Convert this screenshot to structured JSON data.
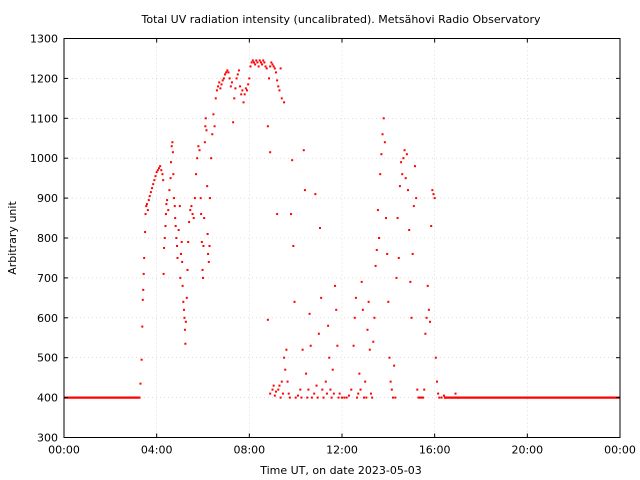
{
  "chart_data": {
    "type": "scatter",
    "title": "Total UV radiation intensity (uncalibrated). Metsähovi Radio Observatory",
    "xlabel": "Time UT, on date 2023-05-03",
    "ylabel": "Arbitrary unit",
    "xlim": [
      0,
      24
    ],
    "ylim": [
      300,
      1300
    ],
    "x_ticks": [
      {
        "value": 0,
        "label": "00:00"
      },
      {
        "value": 4,
        "label": "04:00"
      },
      {
        "value": 8,
        "label": "08:00"
      },
      {
        "value": 12,
        "label": "12:00"
      },
      {
        "value": 16,
        "label": "16:00"
      },
      {
        "value": 20,
        "label": "20:00"
      },
      {
        "value": 24,
        "label": "00:00"
      }
    ],
    "y_ticks": [
      300,
      400,
      500,
      600,
      700,
      800,
      900,
      1000,
      1100,
      1200,
      1300
    ],
    "grid": true,
    "marker_color": "#ff0000",
    "series": [
      {
        "x_unit": "hours UT",
        "baseline_night": [
          {
            "x_start": 0.0,
            "x_end": 3.3,
            "y": 400
          },
          {
            "x_start": 16.4,
            "x_end": 24.0,
            "y": 400
          }
        ],
        "points": [
          [
            3.3,
            435
          ],
          [
            3.35,
            495
          ],
          [
            3.38,
            578
          ],
          [
            3.4,
            645
          ],
          [
            3.42,
            670
          ],
          [
            3.44,
            710
          ],
          [
            3.46,
            750
          ],
          [
            3.5,
            815
          ],
          [
            3.52,
            860
          ],
          [
            3.55,
            880
          ],
          [
            3.58,
            885
          ],
          [
            3.62,
            870
          ],
          [
            3.66,
            895
          ],
          [
            3.7,
            905
          ],
          [
            3.75,
            915
          ],
          [
            3.8,
            925
          ],
          [
            3.85,
            935
          ],
          [
            3.9,
            945
          ],
          [
            3.95,
            955
          ],
          [
            4.0,
            965
          ],
          [
            4.05,
            970
          ],
          [
            4.1,
            975
          ],
          [
            4.15,
            980
          ],
          [
            4.2,
            970
          ],
          [
            4.25,
            960
          ],
          [
            4.28,
            945
          ],
          [
            4.3,
            710
          ],
          [
            4.32,
            775
          ],
          [
            4.35,
            800
          ],
          [
            4.38,
            830
          ],
          [
            4.4,
            860
          ],
          [
            4.42,
            885
          ],
          [
            4.45,
            895
          ],
          [
            4.5,
            870
          ],
          [
            4.55,
            920
          ],
          [
            4.6,
            950
          ],
          [
            4.62,
            990
          ],
          [
            4.65,
            1030
          ],
          [
            4.68,
            1040
          ],
          [
            4.7,
            1015
          ],
          [
            4.72,
            960
          ],
          [
            4.75,
            900
          ],
          [
            4.78,
            880
          ],
          [
            4.8,
            850
          ],
          [
            4.82,
            830
          ],
          [
            4.85,
            800
          ],
          [
            4.88,
            780
          ],
          [
            4.9,
            750
          ],
          [
            4.95,
            820
          ],
          [
            5.0,
            880
          ],
          [
            5.02,
            700
          ],
          [
            5.05,
            760
          ],
          [
            5.08,
            790
          ],
          [
            5.1,
            740
          ],
          [
            5.12,
            680
          ],
          [
            5.15,
            640
          ],
          [
            5.18,
            620
          ],
          [
            5.2,
            600
          ],
          [
            5.22,
            570
          ],
          [
            5.24,
            535
          ],
          [
            5.26,
            590
          ],
          [
            5.3,
            650
          ],
          [
            5.33,
            720
          ],
          [
            5.36,
            790
          ],
          [
            5.4,
            840
          ],
          [
            5.45,
            870
          ],
          [
            5.5,
            880
          ],
          [
            5.55,
            860
          ],
          [
            5.6,
            850
          ],
          [
            5.65,
            900
          ],
          [
            5.7,
            960
          ],
          [
            5.75,
            1000
          ],
          [
            5.8,
            1030
          ],
          [
            5.85,
            1020
          ],
          [
            5.9,
            900
          ],
          [
            5.92,
            860
          ],
          [
            5.95,
            790
          ],
          [
            5.98,
            720
          ],
          [
            6.0,
            700
          ],
          [
            6.02,
            780
          ],
          [
            6.05,
            850
          ],
          [
            6.08,
            1040
          ],
          [
            6.1,
            1080
          ],
          [
            6.12,
            1100
          ],
          [
            6.15,
            1070
          ],
          [
            6.18,
            930
          ],
          [
            6.2,
            810
          ],
          [
            6.22,
            760
          ],
          [
            6.25,
            740
          ],
          [
            6.28,
            780
          ],
          [
            6.3,
            900
          ],
          [
            6.35,
            1000
          ],
          [
            6.4,
            1060
          ],
          [
            6.45,
            1110
          ],
          [
            6.5,
            1080
          ],
          [
            6.55,
            1150
          ],
          [
            6.6,
            1170
          ],
          [
            6.65,
            1180
          ],
          [
            6.7,
            1190
          ],
          [
            6.75,
            1175
          ],
          [
            6.8,
            1185
          ],
          [
            6.85,
            1195
          ],
          [
            6.9,
            1200
          ],
          [
            6.95,
            1210
          ],
          [
            7.0,
            1215
          ],
          [
            7.05,
            1220
          ],
          [
            7.1,
            1215
          ],
          [
            7.15,
            1200
          ],
          [
            7.2,
            1180
          ],
          [
            7.25,
            1190
          ],
          [
            7.3,
            1090
          ],
          [
            7.35,
            1150
          ],
          [
            7.4,
            1175
          ],
          [
            7.45,
            1200
          ],
          [
            7.5,
            1210
          ],
          [
            7.55,
            1220
          ],
          [
            7.6,
            1180
          ],
          [
            7.65,
            1160
          ],
          [
            7.7,
            1170
          ],
          [
            7.75,
            1140
          ],
          [
            7.8,
            1160
          ],
          [
            7.85,
            1175
          ],
          [
            7.9,
            1170
          ],
          [
            7.95,
            1185
          ],
          [
            8.0,
            1200
          ],
          [
            8.05,
            1230
          ],
          [
            8.1,
            1240
          ],
          [
            8.15,
            1245
          ],
          [
            8.2,
            1240
          ],
          [
            8.25,
            1235
          ],
          [
            8.3,
            1245
          ],
          [
            8.35,
            1240
          ],
          [
            8.4,
            1230
          ],
          [
            8.45,
            1245
          ],
          [
            8.5,
            1240
          ],
          [
            8.55,
            1235
          ],
          [
            8.6,
            1245
          ],
          [
            8.65,
            1240
          ],
          [
            8.7,
            1230
          ],
          [
            8.75,
            1225
          ],
          [
            8.8,
            1080
          ],
          [
            8.85,
            1200
          ],
          [
            8.9,
            1230
          ],
          [
            8.95,
            1240
          ],
          [
            9.0,
            1235
          ],
          [
            9.05,
            1230
          ],
          [
            9.1,
            1225
          ],
          [
            9.15,
            1215
          ],
          [
            9.2,
            1195
          ],
          [
            9.25,
            1180
          ],
          [
            9.3,
            1170
          ],
          [
            9.35,
            1225
          ],
          [
            9.4,
            1150
          ],
          [
            9.5,
            1140
          ],
          [
            8.9,
            1015
          ],
          [
            8.8,
            595
          ],
          [
            8.9,
            410
          ],
          [
            9.0,
            420
          ],
          [
            9.05,
            430
          ],
          [
            9.1,
            405
          ],
          [
            9.15,
            415
          ],
          [
            9.2,
            860
          ],
          [
            9.25,
            420
          ],
          [
            9.3,
            430
          ],
          [
            9.35,
            400
          ],
          [
            9.4,
            440
          ],
          [
            9.45,
            410
          ],
          [
            9.5,
            500
          ],
          [
            9.55,
            470
          ],
          [
            9.6,
            520
          ],
          [
            9.65,
            440
          ],
          [
            9.7,
            410
          ],
          [
            9.75,
            400
          ],
          [
            9.8,
            860
          ],
          [
            9.85,
            995
          ],
          [
            9.9,
            780
          ],
          [
            9.95,
            640
          ],
          [
            10.0,
            400
          ],
          [
            10.1,
            405
          ],
          [
            10.2,
            420
          ],
          [
            10.25,
            400
          ],
          [
            10.3,
            520
          ],
          [
            10.35,
            1020
          ],
          [
            10.4,
            920
          ],
          [
            10.45,
            460
          ],
          [
            10.5,
            400
          ],
          [
            10.55,
            420
          ],
          [
            10.6,
            610
          ],
          [
            10.65,
            530
          ],
          [
            10.7,
            400
          ],
          [
            10.8,
            410
          ],
          [
            10.85,
            910
          ],
          [
            10.9,
            430
          ],
          [
            10.95,
            400
          ],
          [
            11.0,
            560
          ],
          [
            11.05,
            825
          ],
          [
            11.1,
            650
          ],
          [
            11.15,
            420
          ],
          [
            11.2,
            400
          ],
          [
            11.3,
            440
          ],
          [
            11.35,
            410
          ],
          [
            11.4,
            580
          ],
          [
            11.45,
            500
          ],
          [
            11.5,
            420
          ],
          [
            11.55,
            400
          ],
          [
            11.6,
            470
          ],
          [
            11.65,
            410
          ],
          [
            11.7,
            680
          ],
          [
            11.75,
            620
          ],
          [
            11.8,
            530
          ],
          [
            11.85,
            400
          ],
          [
            11.9,
            410
          ],
          [
            12.0,
            400
          ],
          [
            12.1,
            400
          ],
          [
            12.2,
            400
          ],
          [
            12.3,
            405
          ],
          [
            12.4,
            420
          ],
          [
            12.5,
            530
          ],
          [
            12.55,
            600
          ],
          [
            12.6,
            650
          ],
          [
            12.65,
            400
          ],
          [
            12.7,
            410
          ],
          [
            12.75,
            460
          ],
          [
            12.8,
            420
          ],
          [
            12.85,
            690
          ],
          [
            12.9,
            620
          ],
          [
            12.95,
            400
          ],
          [
            13.0,
            440
          ],
          [
            13.05,
            400
          ],
          [
            13.1,
            570
          ],
          [
            13.15,
            640
          ],
          [
            13.2,
            520
          ],
          [
            13.25,
            410
          ],
          [
            13.3,
            400
          ],
          [
            13.35,
            540
          ],
          [
            13.4,
            600
          ],
          [
            13.45,
            730
          ],
          [
            13.5,
            770
          ],
          [
            13.55,
            870
          ],
          [
            13.6,
            800
          ],
          [
            13.65,
            960
          ],
          [
            13.7,
            1010
          ],
          [
            13.75,
            1060
          ],
          [
            13.8,
            1100
          ],
          [
            13.85,
            1040
          ],
          [
            13.9,
            850
          ],
          [
            13.95,
            760
          ],
          [
            14.0,
            640
          ],
          [
            14.05,
            500
          ],
          [
            14.1,
            440
          ],
          [
            14.15,
            420
          ],
          [
            14.2,
            400
          ],
          [
            14.25,
            480
          ],
          [
            14.3,
            400
          ],
          [
            14.35,
            700
          ],
          [
            14.4,
            850
          ],
          [
            14.45,
            750
          ],
          [
            14.5,
            930
          ],
          [
            14.55,
            990
          ],
          [
            14.6,
            960
          ],
          [
            14.65,
            1000
          ],
          [
            14.7,
            1020
          ],
          [
            14.75,
            950
          ],
          [
            14.8,
            1010
          ],
          [
            14.85,
            920
          ],
          [
            14.9,
            820
          ],
          [
            14.95,
            690
          ],
          [
            15.0,
            600
          ],
          [
            15.05,
            760
          ],
          [
            15.1,
            880
          ],
          [
            15.15,
            980
          ],
          [
            15.2,
            900
          ],
          [
            15.25,
            420
          ],
          [
            15.3,
            400
          ],
          [
            15.35,
            400
          ],
          [
            15.4,
            400
          ],
          [
            15.45,
            400
          ],
          [
            15.5,
            400
          ],
          [
            15.55,
            420
          ],
          [
            15.6,
            560
          ],
          [
            15.65,
            600
          ],
          [
            15.7,
            680
          ],
          [
            15.75,
            620
          ],
          [
            15.8,
            590
          ],
          [
            15.85,
            830
          ],
          [
            15.9,
            920
          ],
          [
            15.95,
            910
          ],
          [
            16.0,
            900
          ],
          [
            16.05,
            500
          ],
          [
            16.1,
            440
          ],
          [
            16.15,
            410
          ],
          [
            16.2,
            400
          ],
          [
            16.3,
            400
          ],
          [
            16.4,
            405
          ],
          [
            16.9,
            410
          ],
          [
            17.0,
            400
          ]
        ]
      }
    ]
  }
}
